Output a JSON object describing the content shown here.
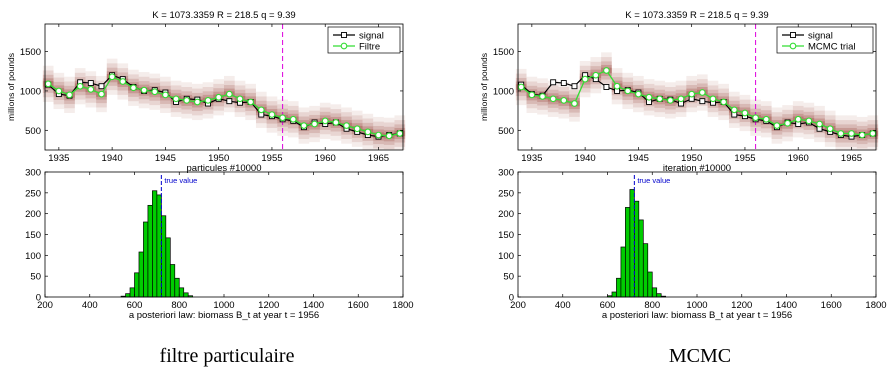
{
  "panels": [
    {
      "caption": "filtre particulaire"
    },
    {
      "caption": "MCMC"
    }
  ],
  "colors": {
    "signal": "#000000",
    "estimate": "#33dd33",
    "particle_cloud": "#9b4a3f",
    "vline": "#dd00dd",
    "histogram_fill": "#00cc00",
    "true_value": "#0000cc"
  },
  "chart_data": [
    {
      "type": "line",
      "title": "K = 1073.3359   R = 218.5   q = 9.39",
      "xlabel": "particules #10000",
      "ylabel": "millions of pounds",
      "xlim": [
        1933.7,
        1967.3
      ],
      "ylim": [
        250,
        1850
      ],
      "xticks": [
        1935,
        1940,
        1945,
        1950,
        1955,
        1960,
        1965
      ],
      "yticks": [
        500,
        1000,
        1500
      ],
      "vline_x": 1956,
      "legend_position": "top-right",
      "x": [
        1934,
        1935,
        1936,
        1937,
        1938,
        1939,
        1940,
        1941,
        1942,
        1943,
        1944,
        1945,
        1946,
        1947,
        1948,
        1949,
        1950,
        1951,
        1952,
        1953,
        1954,
        1955,
        1956,
        1957,
        1958,
        1959,
        1960,
        1961,
        1962,
        1963,
        1964,
        1965,
        1966,
        1967
      ],
      "series": [
        {
          "name": "signal",
          "marker": "square",
          "values": [
            1080,
            960,
            940,
            1110,
            1100,
            1060,
            1200,
            1150,
            1050,
            1000,
            1010,
            980,
            860,
            900,
            890,
            840,
            900,
            870,
            850,
            860,
            700,
            680,
            640,
            620,
            540,
            600,
            580,
            600,
            520,
            480,
            440,
            420,
            440,
            460
          ]
        },
        {
          "name": "Filtre",
          "marker": "circle",
          "values": [
            1090,
            1000,
            950,
            1060,
            1020,
            960,
            1180,
            1120,
            1040,
            1010,
            990,
            950,
            900,
            880,
            860,
            880,
            920,
            960,
            900,
            860,
            760,
            700,
            660,
            640,
            560,
            580,
            620,
            600,
            560,
            520,
            480,
            440,
            430,
            460
          ]
        }
      ]
    },
    {
      "type": "bar",
      "title": "",
      "xlabel": "a posteriori law: biomass B_t at year t = 1956",
      "ylabel": "",
      "xlim": [
        200,
        1800
      ],
      "ylim": [
        0,
        300
      ],
      "xticks": [
        200,
        400,
        600,
        800,
        1000,
        1200,
        1400,
        1600,
        1800
      ],
      "yticks": [
        0,
        50,
        100,
        150,
        200,
        250,
        300
      ],
      "annotation": "true value",
      "true_value": 720,
      "bin_width": 20,
      "bin_starts": [
        540,
        560,
        580,
        600,
        620,
        640,
        660,
        680,
        700,
        720,
        740,
        760,
        780,
        800,
        820,
        840
      ],
      "values": [
        2,
        8,
        22,
        58,
        108,
        180,
        220,
        255,
        245,
        195,
        142,
        78,
        45,
        22,
        10,
        3
      ]
    },
    {
      "type": "line",
      "title": "K = 1073.3359   R = 218.5   q = 9.39",
      "xlabel": "iteration #10000",
      "ylabel": "millions of pounds",
      "xlim": [
        1933.7,
        1967.3
      ],
      "ylim": [
        250,
        1850
      ],
      "xticks": [
        1935,
        1940,
        1945,
        1950,
        1955,
        1960,
        1965
      ],
      "yticks": [
        500,
        1000,
        1500
      ],
      "vline_x": 1956,
      "legend_position": "top-right",
      "x": [
        1934,
        1935,
        1936,
        1937,
        1938,
        1939,
        1940,
        1941,
        1942,
        1943,
        1944,
        1945,
        1946,
        1947,
        1948,
        1949,
        1950,
        1951,
        1952,
        1953,
        1954,
        1955,
        1956,
        1957,
        1958,
        1959,
        1960,
        1961,
        1962,
        1963,
        1964,
        1965,
        1966,
        1967
      ],
      "series": [
        {
          "name": "signal",
          "marker": "square",
          "values": [
            1080,
            960,
            940,
            1110,
            1100,
            1060,
            1200,
            1150,
            1050,
            1000,
            1010,
            980,
            860,
            900,
            890,
            840,
            900,
            870,
            850,
            860,
            700,
            680,
            640,
            620,
            540,
            600,
            580,
            600,
            520,
            480,
            440,
            420,
            440,
            460
          ]
        },
        {
          "name": "MCMC trial",
          "marker": "circle",
          "values": [
            1050,
            950,
            930,
            900,
            880,
            840,
            1150,
            1200,
            1260,
            1060,
            1000,
            960,
            920,
            900,
            880,
            900,
            960,
            980,
            900,
            860,
            760,
            720,
            660,
            640,
            560,
            590,
            640,
            620,
            580,
            520,
            460,
            460,
            440,
            460
          ]
        }
      ]
    },
    {
      "type": "bar",
      "title": "",
      "xlabel": "a posteriori law: biomass B_t at year t = 1956",
      "ylabel": "",
      "xlim": [
        200,
        1800
      ],
      "ylim": [
        0,
        300
      ],
      "xticks": [
        200,
        400,
        600,
        800,
        1000,
        1200,
        1400,
        1600,
        1800
      ],
      "yticks": [
        0,
        50,
        100,
        150,
        200,
        250,
        300
      ],
      "annotation": "true value",
      "true_value": 720,
      "bin_width": 20,
      "bin_starts": [
        600,
        620,
        640,
        660,
        680,
        700,
        720,
        740,
        760,
        780,
        800,
        820,
        840
      ],
      "values": [
        3,
        12,
        45,
        120,
        215,
        258,
        230,
        185,
        128,
        60,
        22,
        8,
        2
      ]
    }
  ]
}
